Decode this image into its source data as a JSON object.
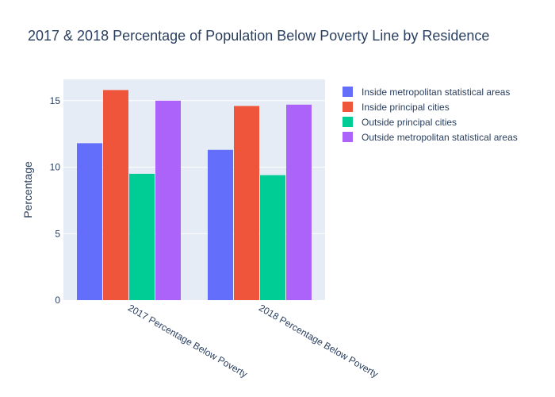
{
  "chart_data": {
    "type": "bar",
    "title": "2017 & 2018 Percentage of Population Below Poverty Line by Residence",
    "xlabel": "",
    "ylabel": "Percentage",
    "categories": [
      "2017 Percentage Below Poverty",
      "2018 Percentage Below Poverty"
    ],
    "ylim": [
      0,
      16.6
    ],
    "yticks": [
      0,
      5,
      10,
      15
    ],
    "grid": true,
    "legend_position": "top-right",
    "series": [
      {
        "name": "Inside metropolitan statistical areas",
        "color": "#636efa",
        "values": [
          11.8,
          11.3
        ]
      },
      {
        "name": "Inside principal cities",
        "color": "#ef553b",
        "values": [
          15.8,
          14.6
        ]
      },
      {
        "name": "Outside principal cities",
        "color": "#00cc96",
        "values": [
          9.5,
          9.4
        ]
      },
      {
        "name": "Outside metropolitan statistical areas",
        "color": "#ab63fa",
        "values": [
          15.0,
          14.7
        ]
      }
    ]
  }
}
